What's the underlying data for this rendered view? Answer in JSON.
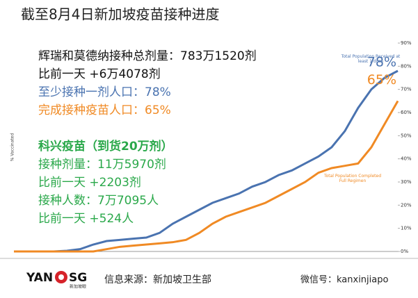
{
  "chart_data": {
    "type": "line",
    "title": "截至8月4日新加坡疫苗接种进度",
    "y_label": "% Vaccinated",
    "categories": [
      null,
      null,
      null,
      null,
      null,
      null,
      null,
      null,
      null,
      null,
      null,
      null,
      null,
      null,
      null,
      null,
      null,
      null,
      null,
      null,
      null,
      null,
      null,
      null,
      null,
      null,
      null,
      null,
      null,
      null
    ],
    "series": [
      {
        "name": "Total Population Received at least 1 dose",
        "color": "#4a73b0",
        "values": [
          0,
          0,
          0,
          0,
          0.3,
          1,
          3,
          4.5,
          5,
          5.5,
          6,
          8,
          12,
          15,
          18,
          21,
          23,
          25,
          28,
          30,
          33,
          35,
          38,
          41,
          45,
          52,
          62,
          70,
          75,
          78
        ],
        "value_labels": [
          null,
          null,
          null,
          null,
          null,
          null,
          null,
          null,
          null,
          null,
          null,
          null,
          null,
          null,
          null,
          null,
          null,
          null,
          null,
          null,
          null,
          null,
          null,
          null,
          null,
          null,
          null,
          null,
          null,
          "78%"
        ]
      },
      {
        "name": "Total Population Completed Full Regimen",
        "color": "#f08a24",
        "values": [
          0,
          0,
          0,
          0,
          0,
          0,
          0,
          1,
          2,
          2.5,
          3,
          3.5,
          4,
          5,
          8,
          12,
          15,
          17,
          19,
          21,
          24,
          27,
          30,
          34,
          36,
          37,
          38,
          45,
          55,
          65
        ],
        "value_labels": [
          null,
          null,
          null,
          null,
          null,
          null,
          null,
          null,
          null,
          null,
          null,
          null,
          null,
          null,
          null,
          null,
          null,
          null,
          null,
          null,
          null,
          null,
          null,
          null,
          null,
          null,
          null,
          null,
          null,
          "65%"
        ]
      }
    ],
    "ylim": [
      0,
      90
    ],
    "yticks": [
      {
        "value": 0,
        "label": "0%"
      },
      {
        "value": 10,
        "label": "10%"
      },
      {
        "value": 20,
        "label": "20%"
      },
      {
        "value": 30,
        "label": "30%"
      },
      {
        "value": 40,
        "label": "40%"
      },
      {
        "value": 50,
        "label": "50%"
      },
      {
        "value": 60,
        "label": "60%"
      },
      {
        "value": 70,
        "label": "70%"
      },
      {
        "value": 80,
        "label": "80%"
      },
      {
        "value": 90,
        "label": "90%"
      }
    ],
    "annotations": [
      "辉瑞和莫德纳接种总剂量：783万1520剂",
      "比前一天 +6万4078剂",
      "至少接种一剂人口：78%",
      "完成接种疫苗人口：65%",
      "科兴疫苗（到货20万剂）",
      "接种剂量：11万5970剂",
      "比前一天 +2203剂",
      "接种人数：7万7095人",
      "比前一天 +524人"
    ]
  },
  "footer": {
    "logo_left": "YAN",
    "logo_right": "SG",
    "logo_sub": "新加坡眼",
    "source": "信息来源：新加坡卫生部",
    "wechat": "微信号：kanxinjiapo"
  }
}
